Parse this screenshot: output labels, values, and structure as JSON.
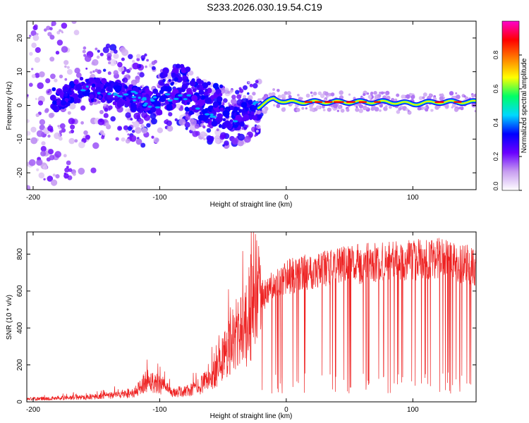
{
  "title": "S233.2026.030.19.54.C19",
  "colormap": {
    "stops": [
      "#ffffff",
      "#c89ef0",
      "#6a00ff",
      "#0000ff",
      "#00d8ff",
      "#00ff66",
      "#ffff00",
      "#ff8000",
      "#ff0000",
      "#ff00cc"
    ],
    "accent_line_color": "#ee2222"
  },
  "chart_data": [
    {
      "type": "heatmap",
      "title": "S233.2026.030.19.54.C19",
      "xlabel": "Height of straight line (km)",
      "ylabel": "Frequency (Hz)",
      "xlim": [
        -205,
        150
      ],
      "ylim": [
        -25,
        25
      ],
      "xticks": [
        -200,
        -100,
        0,
        100
      ],
      "yticks": [
        -20,
        -10,
        0,
        10,
        20
      ],
      "colorbar": {
        "label": "Normalized spectral amplitude",
        "range": [
          0.0,
          1.0
        ],
        "ticks": [
          0.0,
          0.2,
          0.4,
          0.6,
          0.8
        ]
      },
      "ridge": {
        "description_points_x": [
          -205,
          -180,
          -160,
          -140,
          -120,
          -100,
          -85,
          -70,
          -55,
          -40,
          -30,
          -20,
          -10,
          0,
          20,
          40,
          60,
          80,
          100,
          120,
          150
        ],
        "frequency_hz": [
          0,
          2,
          5,
          4,
          2,
          1,
          3,
          0,
          -3,
          -4,
          -2,
          0,
          2,
          1,
          1,
          1,
          1,
          1,
          0.5,
          1,
          1
        ]
      }
    },
    {
      "type": "line",
      "xlabel": "Height of straight line (km)",
      "ylabel": "SNR (10 * v/v)",
      "xlim": [
        -205,
        150
      ],
      "ylim": [
        0,
        920
      ],
      "xticks": [
        -200,
        -100,
        0,
        100
      ],
      "yticks": [
        0,
        200,
        400,
        600,
        800
      ],
      "series": [
        {
          "name": "SNR",
          "envelope_x": [
            -205,
            -180,
            -150,
            -120,
            -110,
            -100,
            -90,
            -75,
            -60,
            -50,
            -40,
            -30,
            -25,
            -20,
            -15,
            -10,
            0,
            10,
            20,
            30,
            40,
            60,
            80,
            100,
            120,
            140,
            150
          ],
          "envelope_y": [
            20,
            25,
            35,
            60,
            150,
            120,
            60,
            80,
            150,
            300,
            450,
            520,
            760,
            600,
            620,
            650,
            700,
            720,
            740,
            750,
            760,
            780,
            790,
            800,
            810,
            780,
            760
          ]
        }
      ]
    }
  ]
}
